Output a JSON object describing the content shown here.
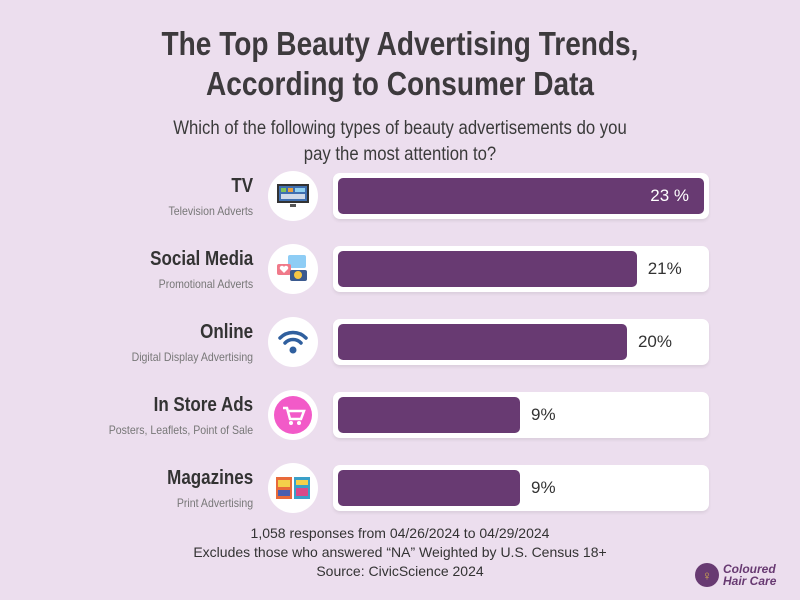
{
  "title_line1": "The Top Beauty Advertising Trends,",
  "title_line2": "According to Consumer Data",
  "subtitle_line1": "Which of the following types of beauty advertisements do you",
  "subtitle_line2": "pay the most attention to?",
  "chart_data": {
    "type": "bar",
    "orientation": "horizontal",
    "categories": [
      "TV",
      "Social Media",
      "Online",
      "In Store Ads",
      "Magazines"
    ],
    "subcategories": [
      "Television Adverts",
      "Promotional Adverts",
      "Digital Display Advertising",
      "Posters, Leaflets, Point of Sale",
      "Print Advertising"
    ],
    "values": [
      23,
      21,
      20,
      9,
      9
    ],
    "value_labels": [
      "23 %",
      "21%",
      "20%",
      "9%",
      "9%"
    ],
    "icons": [
      "tv-icon",
      "social-chat-icon",
      "wifi-icon",
      "shopping-cart-icon",
      "magazine-icon"
    ],
    "bar_color": "#683a72",
    "unit": "%"
  },
  "footer": {
    "line1": "1,058 responses from 04/26/2024 to 04/29/2024",
    "line2": "Excludes those who answered “NA” Weighted by U.S. Census 18+",
    "line3": "Source: CivicScience 2024"
  },
  "logo": {
    "line1": "Coloured",
    "line2": "Hair Care"
  }
}
